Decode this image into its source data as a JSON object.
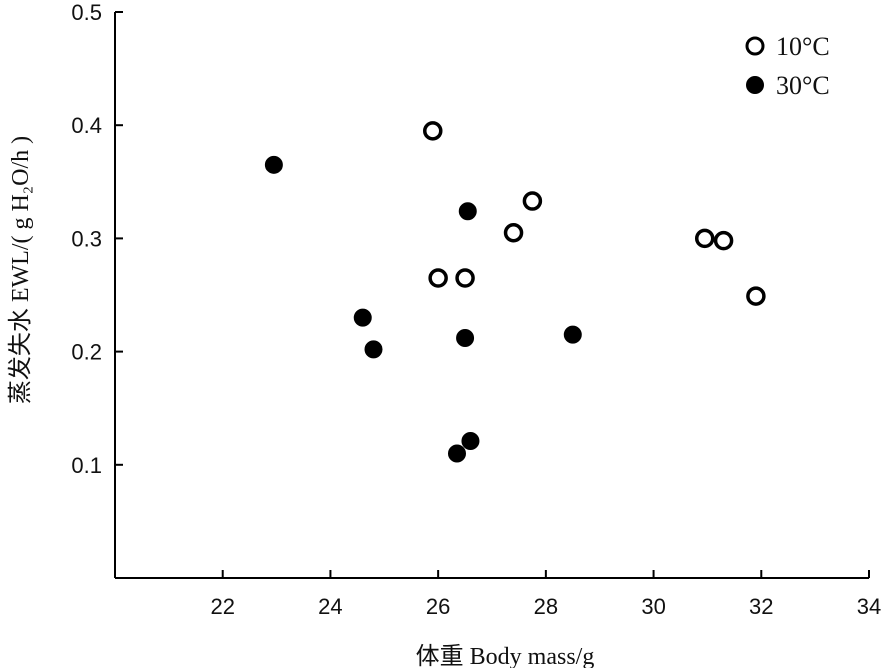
{
  "chart_data": {
    "type": "scatter",
    "xlabel": "体重 Body mass/g",
    "ylabel": "蒸发失水 EWL/( g H₂O/h )",
    "xlim": [
      20,
      34
    ],
    "ylim": [
      0,
      0.5
    ],
    "xticks": [
      22,
      24,
      26,
      28,
      30,
      32,
      34
    ],
    "yticks": [
      0.1,
      0.2,
      0.3,
      0.4,
      0.5
    ],
    "xtick_labels": [
      "22",
      "24",
      "26",
      "28",
      "30",
      "32",
      "34"
    ],
    "ytick_labels": [
      "0.1",
      "0.2",
      "0.3",
      "0.4",
      "0.5"
    ],
    "legend_position": "top-right",
    "series": [
      {
        "name": "10°C",
        "marker": "open-circle",
        "color": "#000000",
        "points": [
          {
            "x": 25.9,
            "y": 0.395
          },
          {
            "x": 26.0,
            "y": 0.265
          },
          {
            "x": 26.5,
            "y": 0.265
          },
          {
            "x": 27.4,
            "y": 0.305
          },
          {
            "x": 27.75,
            "y": 0.333
          },
          {
            "x": 30.95,
            "y": 0.3
          },
          {
            "x": 31.3,
            "y": 0.298
          },
          {
            "x": 31.9,
            "y": 0.249
          }
        ]
      },
      {
        "name": "30°C",
        "marker": "filled-circle",
        "color": "#000000",
        "points": [
          {
            "x": 22.95,
            "y": 0.365
          },
          {
            "x": 24.6,
            "y": 0.23
          },
          {
            "x": 24.8,
            "y": 0.202
          },
          {
            "x": 26.35,
            "y": 0.11
          },
          {
            "x": 26.5,
            "y": 0.212
          },
          {
            "x": 26.55,
            "y": 0.324
          },
          {
            "x": 26.6,
            "y": 0.121
          },
          {
            "x": 28.5,
            "y": 0.215
          }
        ]
      }
    ]
  }
}
